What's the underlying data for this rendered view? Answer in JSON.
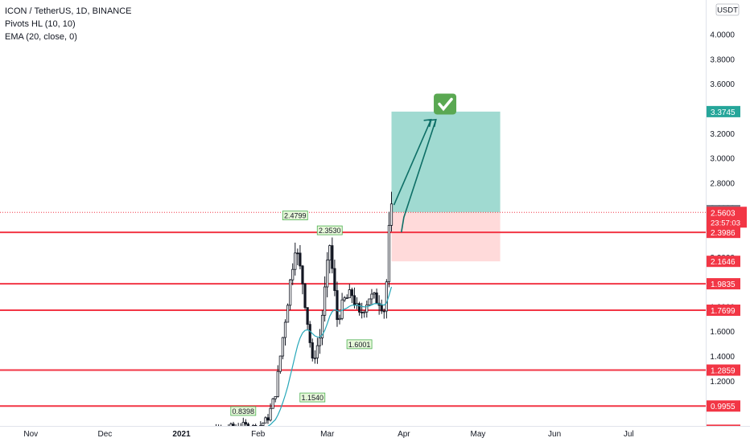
{
  "legend": {
    "title": "ICON / TetherUS, 1D, BINANCE",
    "indicator1": "Pivots HL (10, 10)",
    "indicator2": "EMA (20, close, 0)"
  },
  "chart_data": {
    "type": "candlestick",
    "symbol": "ICON / TetherUS",
    "interval": "1D",
    "exchange": "BINANCE",
    "currency": "USDT",
    "x_ticks": [
      "Nov",
      "Dec",
      "2021",
      "Feb",
      "Mar",
      "Apr",
      "May",
      "Jun",
      "Jul"
    ],
    "y_ticks": [
      "4.0000",
      "3.8000",
      "3.6000",
      "3.4000",
      "3.2000",
      "3.0000",
      "2.8000",
      "2.6000",
      "2.4000",
      "2.2000",
      "2.0000",
      "1.8000",
      "1.6000",
      "1.4000",
      "1.2000"
    ],
    "ylim": [
      1.0,
      4.05
    ],
    "support_resistance_levels": [
      2.3986,
      1.9835,
      1.7699,
      1.2859,
      0.9955,
      0.8
    ],
    "pivot_labels": [
      {
        "label": "2.4799",
        "type": "high",
        "date": "2021-02-16"
      },
      {
        "label": "2.3530",
        "type": "high",
        "date": "2021-03-02"
      },
      {
        "label": "0.8398",
        "type": "high",
        "date": "2021-01-26"
      },
      {
        "label": "1.1540",
        "type": "low",
        "date": "2021-02-23"
      },
      {
        "label": "1.6001",
        "type": "low",
        "date": "2021-03-14"
      }
    ],
    "price_labels": {
      "target": "3.3745",
      "high_marker": "2.5745",
      "last_price": "2.5603",
      "countdown": "23:57:03",
      "stop": "2.1646"
    },
    "position_tool": {
      "entry": 2.5603,
      "target": 3.3745,
      "stop": 2.1646,
      "start_date": "2021-03-27",
      "end_date": "2021-05-10"
    },
    "colors": {
      "up": "#26a69a",
      "down": "#ef5350",
      "candle_body": "#131722",
      "ema": "#26a7b9",
      "level_line": "#f23645",
      "target_zone": "#8fd3c9",
      "stop_zone": "#ffd6d6",
      "arrow": "#0d6e66",
      "badge": "#5aa852",
      "last_price": "#f23645"
    }
  }
}
